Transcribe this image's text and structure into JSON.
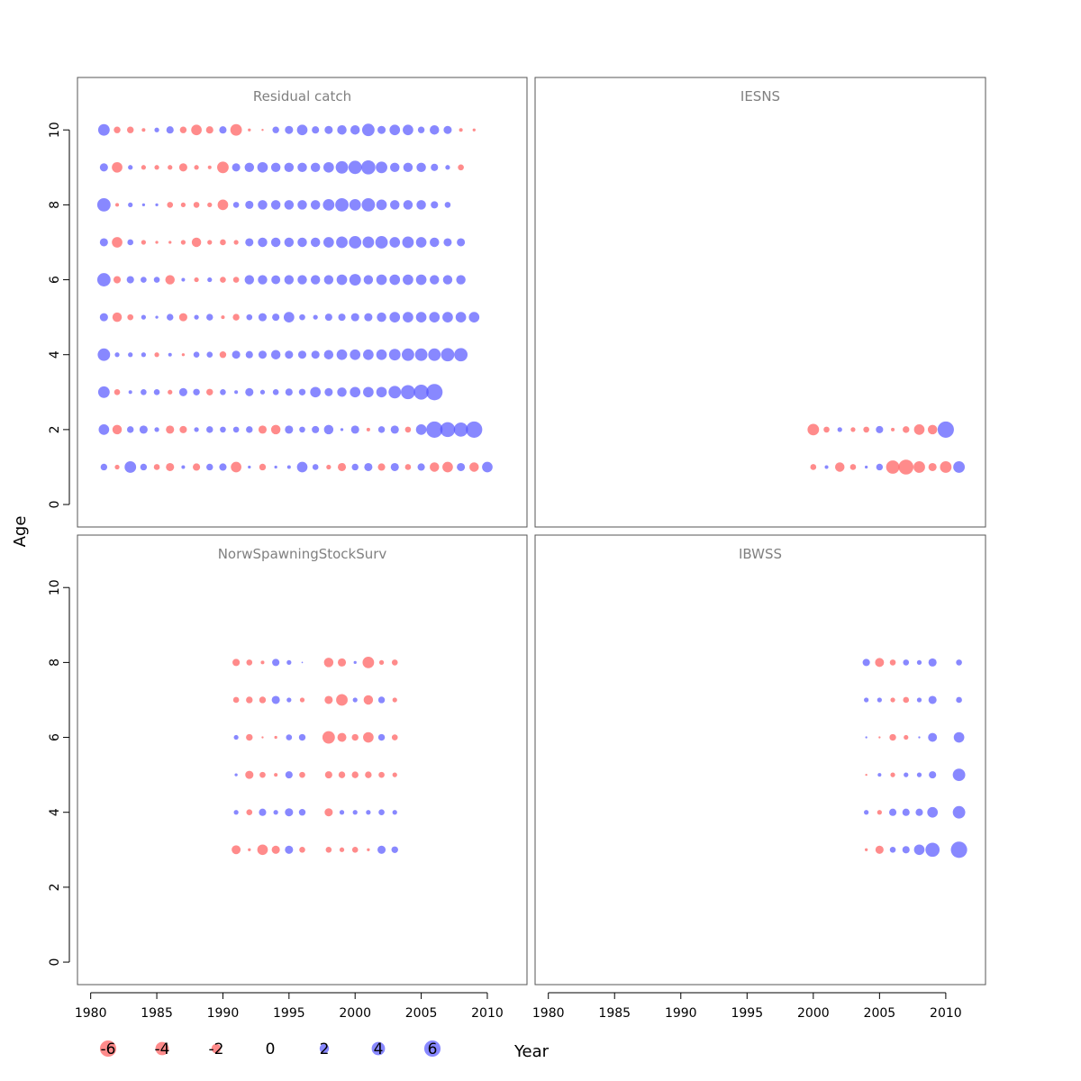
{
  "chart_data": {
    "type": "scatter",
    "subtype": "bubble",
    "xlabel": "Year",
    "ylabel": "Age",
    "xlim": [
      1979,
      2013
    ],
    "ylim": [
      -0.6,
      11.4
    ],
    "x_ticks": [
      1980,
      1985,
      1990,
      1995,
      2000,
      2005,
      2010
    ],
    "y_ticks": [
      0,
      2,
      4,
      6,
      8,
      10
    ],
    "colors": {
      "positive": "#5555ff",
      "negative": "#ff5a5a",
      "opacity": 0.7
    },
    "legend": {
      "values": [
        -6,
        -4,
        -2,
        0,
        2,
        4,
        6
      ],
      "labels": [
        "-6",
        "-4",
        "-2",
        "0",
        "2",
        "4",
        "6"
      ]
    },
    "panels": [
      {
        "title": "Residual catch",
        "x_start": 1981,
        "ages": [
          1,
          2,
          3,
          4,
          5,
          6,
          7,
          8,
          9,
          10
        ],
        "residuals": {
          "1": [
            1.0,
            -0.5,
            3.0,
            1.0,
            -0.8,
            -1.5,
            0.3,
            -1.2,
            1.0,
            1.2,
            -2.5,
            0.2,
            -1.0,
            0.2,
            0.3,
            2.5,
            0.8,
            -0.5,
            -1.5,
            1.0,
            1.5,
            -1.2,
            1.5,
            -0.8,
            1.2,
            -2.0,
            -2.5,
            1.5,
            -2.0,
            2.5
          ],
          "2": [
            2.5,
            -2.0,
            1.0,
            1.5,
            0.5,
            -1.5,
            -1.2,
            0.5,
            1.0,
            0.8,
            0.8,
            1.0,
            -1.5,
            -2.0,
            1.5,
            0.8,
            1.2,
            2.0,
            0.2,
            1.5,
            -0.3,
            1.0,
            1.5,
            -0.8,
            2.5,
            6.0,
            5.0,
            4.5,
            6.0,
            0
          ],
          "3": [
            3.0,
            -0.8,
            0.3,
            0.8,
            0.8,
            -0.5,
            1.5,
            1.0,
            -1.0,
            0.8,
            0.3,
            1.5,
            0.5,
            0.8,
            1.2,
            1.0,
            2.5,
            1.5,
            2.0,
            2.5,
            2.5,
            2.5,
            3.5,
            4.5,
            5.0,
            6.0,
            0,
            0,
            0,
            0
          ],
          "4": [
            3.5,
            0.5,
            0.5,
            0.5,
            -0.5,
            0.3,
            -0.2,
            0.8,
            0.8,
            -1.0,
            1.5,
            1.2,
            1.5,
            2.0,
            1.5,
            1.5,
            1.5,
            2.0,
            2.5,
            2.5,
            2.5,
            2.5,
            3.0,
            3.5,
            3.5,
            3.5,
            4.0,
            4.0,
            0,
            0
          ],
          "5": [
            1.5,
            -2.0,
            -0.8,
            0.5,
            0.2,
            1.0,
            -1.5,
            0.5,
            1.0,
            -0.3,
            -1.0,
            0.8,
            1.5,
            1.2,
            2.5,
            0.8,
            0.5,
            1.2,
            1.2,
            1.5,
            1.5,
            2.0,
            2.5,
            2.5,
            2.5,
            2.5,
            2.5,
            2.5,
            2.5,
            0
          ],
          "6": [
            4.0,
            -1.2,
            1.2,
            0.8,
            0.8,
            -2.0,
            0.3,
            -0.5,
            0.5,
            -0.8,
            -0.8,
            2.0,
            2.0,
            1.8,
            2.0,
            2.0,
            2.0,
            2.0,
            2.5,
            3.0,
            2.0,
            2.5,
            2.5,
            2.5,
            2.5,
            2.0,
            2.0,
            2.0,
            0,
            0
          ],
          "7": [
            1.5,
            -2.5,
            0.8,
            -0.5,
            -0.2,
            -0.2,
            -0.5,
            -2.0,
            -0.5,
            -0.8,
            -0.5,
            1.5,
            2.0,
            2.0,
            2.0,
            2.0,
            2.0,
            2.5,
            3.0,
            3.5,
            3.0,
            3.5,
            2.5,
            3.0,
            2.5,
            2.0,
            1.5,
            1.5,
            0,
            0
          ],
          "8": [
            4.0,
            -0.3,
            0.5,
            0.2,
            0.2,
            -0.8,
            -0.5,
            -0.8,
            -0.5,
            -2.5,
            0.8,
            1.5,
            2.0,
            2.0,
            2.0,
            2.0,
            2.0,
            3.0,
            4.0,
            3.0,
            4.0,
            2.5,
            2.0,
            2.0,
            2.0,
            1.2,
            0.8,
            0,
            0,
            0
          ],
          "9": [
            1.5,
            -2.5,
            0.5,
            -0.5,
            -0.5,
            -0.5,
            -1.5,
            -0.5,
            -0.3,
            -3.0,
            1.5,
            2.0,
            2.5,
            2.0,
            2.0,
            2.0,
            2.0,
            2.5,
            3.5,
            4.0,
            4.5,
            3.0,
            2.0,
            2.0,
            2.0,
            1.2,
            0.5,
            -0.8,
            0,
            0
          ],
          "10": [
            3.0,
            -1.0,
            -1.0,
            -0.3,
            0.5,
            1.2,
            -1.0,
            -2.5,
            -1.2,
            1.2,
            -3.0,
            -0.2,
            -0.1,
            1.0,
            1.5,
            2.5,
            1.2,
            1.5,
            2.0,
            2.0,
            3.5,
            1.5,
            2.5,
            2.5,
            1.0,
            2.0,
            1.5,
            -0.3,
            -0.2,
            0
          ]
        }
      },
      {
        "title": "IESNS",
        "x_start": 2000,
        "ages": [
          1,
          2
        ],
        "residuals": {
          "1": [
            -0.8,
            0.3,
            -2.0,
            -0.8,
            0.2,
            1.0,
            -4.0,
            -5.0,
            -3.0,
            -1.5,
            -3.0,
            3.0
          ],
          "2": [
            -3.0,
            -0.8,
            0.5,
            -0.5,
            -0.8,
            1.2,
            -0.3,
            -1.0,
            -2.5,
            -2.0,
            6.0,
            0
          ]
        }
      },
      {
        "title": "NorwSpawningStockSurv",
        "x_start": 1991,
        "ages": [
          3,
          4,
          5,
          6,
          7,
          8
        ],
        "residuals": {
          "3": [
            -1.8,
            -0.2,
            -2.5,
            -1.5,
            1.5,
            -0.8,
            0,
            -0.8,
            -0.5,
            -0.8,
            -0.2,
            1.5,
            1.0
          ],
          "4": [
            0.5,
            -0.8,
            1.2,
            0.5,
            1.5,
            1.0,
            0,
            -1.5,
            0.5,
            0.5,
            0.5,
            0.8,
            0.5
          ],
          "5": [
            0.2,
            -1.5,
            -0.8,
            -0.3,
            1.2,
            -0.8,
            0,
            -1.2,
            -1.0,
            -1.0,
            -1.0,
            -0.8,
            -0.5
          ],
          "6": [
            0.5,
            -1.0,
            -0.1,
            -0.2,
            0.8,
            1.0,
            0,
            -3.5,
            -1.8,
            -1.0,
            -2.5,
            1.0,
            -0.8
          ],
          "7": [
            -0.8,
            -1.0,
            -1.0,
            1.5,
            0.5,
            -0.5,
            0,
            -1.5,
            -3.0,
            0.5,
            -2.0,
            1.0,
            -0.5
          ],
          "8": [
            -1.2,
            -0.8,
            -0.3,
            1.2,
            0.5,
            0.05,
            0,
            -2.0,
            -1.5,
            0.2,
            -3.0,
            -0.5,
            -0.8
          ]
        }
      },
      {
        "title": "IBWSS",
        "x_start": 2004,
        "ages": [
          3,
          4,
          5,
          6,
          7,
          8
        ],
        "residuals": {
          "3": [
            -0.2,
            -1.5,
            0.8,
            1.2,
            2.5,
            4.5,
            0,
            6.0
          ],
          "4": [
            0.5,
            -0.5,
            1.2,
            1.2,
            1.2,
            2.5,
            0,
            3.5
          ],
          "5": [
            -0.1,
            0.3,
            -0.5,
            0.5,
            0.5,
            1.2,
            0,
            3.5
          ],
          "6": [
            0.1,
            -0.1,
            -1.0,
            -0.5,
            0.1,
            1.8,
            0,
            2.5
          ],
          "7": [
            0.5,
            0.5,
            -0.5,
            -0.8,
            0.5,
            1.5,
            0,
            0.8
          ],
          "8": [
            1.2,
            -1.8,
            -0.8,
            0.8,
            0.5,
            1.5,
            0,
            0.8
          ]
        }
      }
    ]
  }
}
